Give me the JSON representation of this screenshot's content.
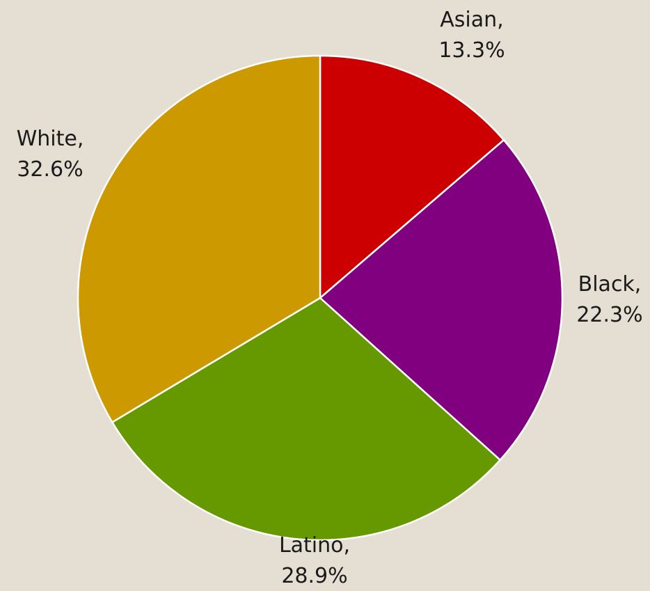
{
  "chart_data": {
    "type": "pie",
    "title": "",
    "start_angle_deg": 0,
    "direction": "clockwise",
    "slices": [
      {
        "category": "Asian",
        "value": 13.3,
        "label_line1": "Asian,",
        "label_line2": "13.3%",
        "color": "#cc0000"
      },
      {
        "category": "Black",
        "value": 22.3,
        "label_line1": "Black,",
        "label_line2": "22.3%",
        "color": "#800080"
      },
      {
        "category": "Latino",
        "value": 28.9,
        "label_line1": "Latino,",
        "label_line2": "28.9%",
        "color": "#669900"
      },
      {
        "category": "White",
        "value": 32.6,
        "label_line1": "White,",
        "label_line2": "32.6%",
        "color": "#cc9900"
      }
    ],
    "background": "#e5ded3",
    "slice_border_color": "#ffffff"
  }
}
